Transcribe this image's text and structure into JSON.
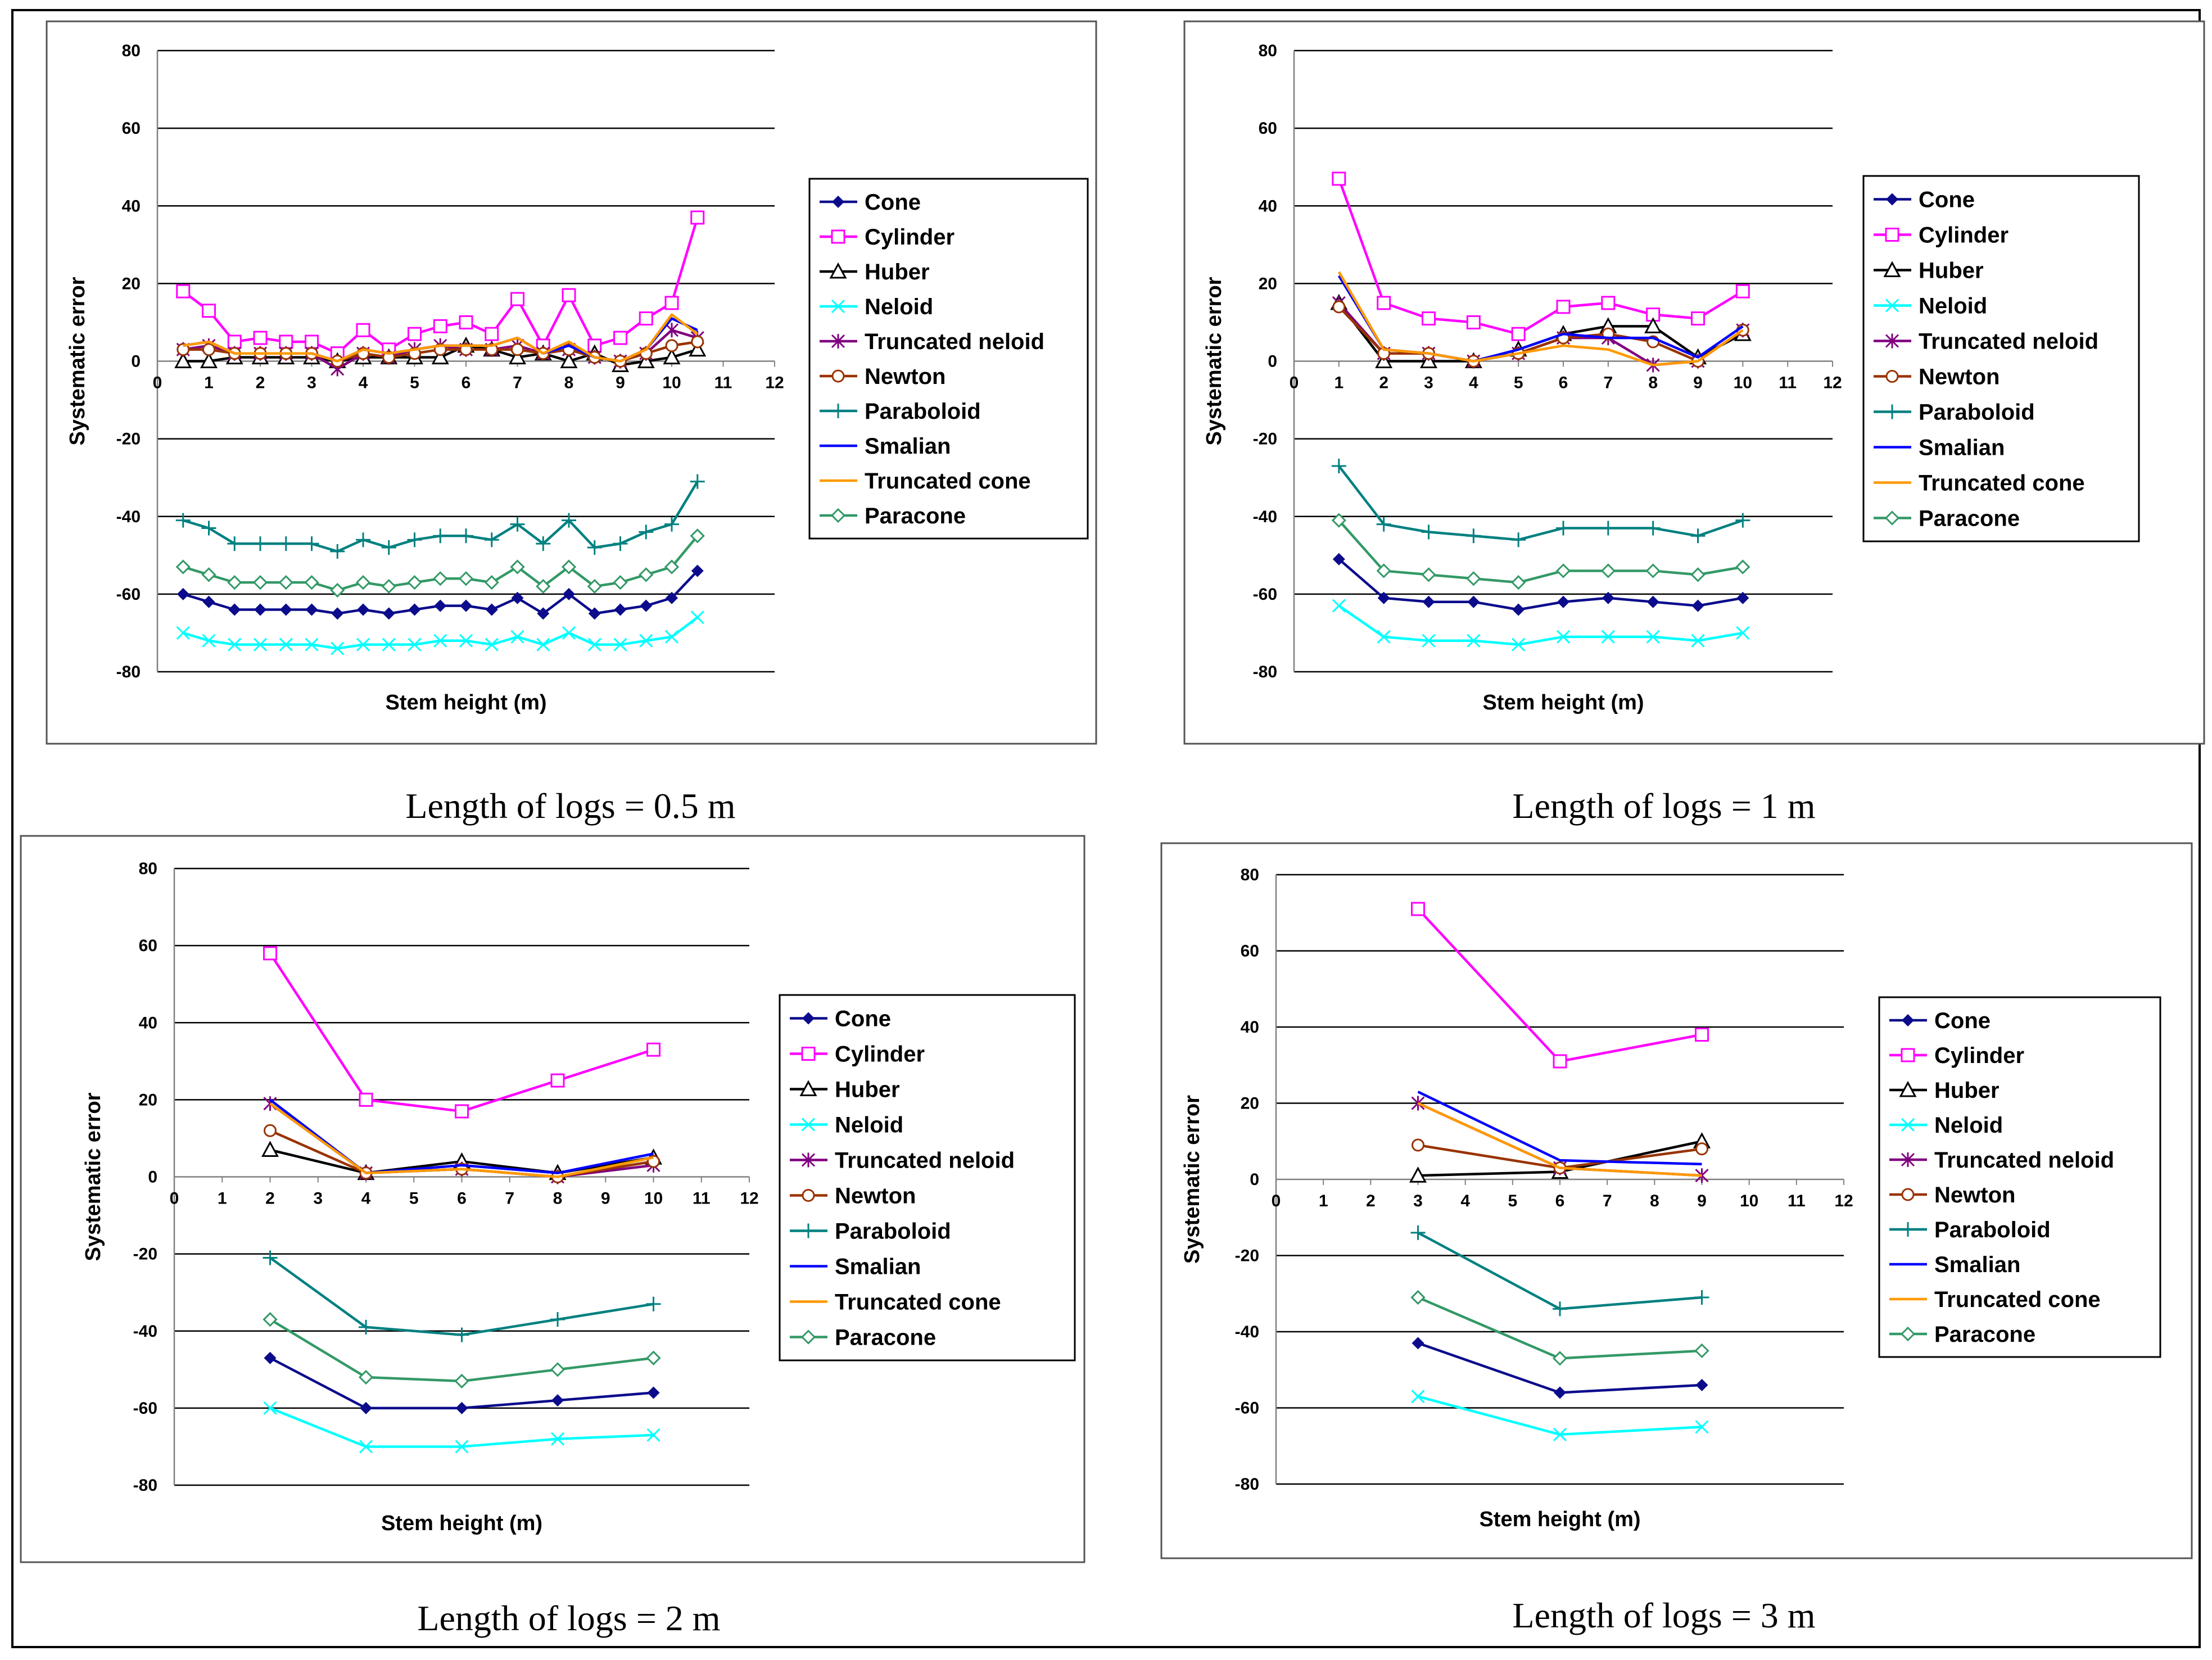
{
  "figure": {
    "captions": [
      "Length of logs = 0.5 m",
      "Length of logs = 1 m",
      "Length of logs = 2 m",
      "Length of logs = 3 m"
    ]
  },
  "series_styles": {
    "Cone": {
      "color": "#0B0B8C",
      "marker": "diamond"
    },
    "Cylinder": {
      "color": "#FF00FF",
      "marker": "square"
    },
    "Huber": {
      "color": "#000000",
      "marker": "triangle"
    },
    "Neloid": {
      "color": "#00FFFF",
      "marker": "x"
    },
    "Truncated neloid": {
      "color": "#800080",
      "marker": "star"
    },
    "Newton": {
      "color": "#993300",
      "marker": "circle"
    },
    "Paraboloid": {
      "color": "#008080",
      "marker": "plus"
    },
    "Smalian": {
      "color": "#0000FF",
      "marker": "none"
    },
    "Truncated cone": {
      "color": "#FF9900",
      "marker": "none"
    },
    "Paracone": {
      "color": "#339966",
      "marker": "diamond-open"
    }
  },
  "chart_data": [
    {
      "type": "line",
      "caption": "Length of logs = 0.5 m",
      "xlabel": "Stem height (m)",
      "ylabel": "Systematic error",
      "xlim": [
        0,
        12
      ],
      "ylim": [
        -80,
        80
      ],
      "xticks": [
        "0",
        "1",
        "2",
        "3",
        "4",
        "5",
        "6",
        "7",
        "8",
        "9",
        "10",
        "11",
        "12"
      ],
      "yticks": [
        "80",
        "60",
        "40",
        "20",
        "0",
        "-20",
        "-40",
        "-60",
        "-80"
      ],
      "x": [
        0.5,
        1,
        1.5,
        2,
        2.5,
        3,
        3.5,
        4,
        4.5,
        5,
        5.5,
        6,
        6.5,
        7,
        7.5,
        8,
        8.5,
        9,
        9.5,
        10,
        10.5
      ],
      "series": [
        {
          "name": "Cone",
          "values": [
            -60,
            -62,
            -64,
            -64,
            -64,
            -64,
            -65,
            -64,
            -65,
            -64,
            -63,
            -63,
            -64,
            -61,
            -65,
            -60,
            -65,
            -64,
            -63,
            -61,
            -54
          ]
        },
        {
          "name": "Cylinder",
          "values": [
            18,
            13,
            5,
            6,
            5,
            5,
            2,
            8,
            3,
            7,
            9,
            10,
            7,
            16,
            4,
            17,
            4,
            6,
            11,
            15,
            37
          ]
        },
        {
          "name": "Huber",
          "values": [
            0,
            0,
            1,
            1,
            1,
            1,
            0,
            1,
            1,
            1,
            1,
            4,
            3,
            1,
            2,
            0,
            2,
            -1,
            0,
            1,
            3
          ]
        },
        {
          "name": "Neloid",
          "values": [
            -70,
            -72,
            -73,
            -73,
            -73,
            -73,
            -74,
            -73,
            -73,
            -73,
            -72,
            -72,
            -73,
            -71,
            -73,
            -70,
            -73,
            -73,
            -72,
            -71,
            -66
          ]
        },
        {
          "name": "Truncated neloid",
          "values": [
            3,
            4,
            2,
            2,
            2,
            2,
            -2,
            2,
            1,
            3,
            4,
            3,
            3,
            4,
            2,
            3,
            1,
            0,
            2,
            8,
            6
          ]
        },
        {
          "name": "Newton",
          "values": [
            3,
            3,
            2,
            2,
            2,
            2,
            0,
            2,
            1,
            2,
            3,
            3,
            3,
            3,
            2,
            3,
            1,
            0,
            2,
            4,
            5
          ]
        },
        {
          "name": "Paraboloid",
          "values": [
            -41,
            -43,
            -47,
            -47,
            -47,
            -47,
            -49,
            -46,
            -48,
            -46,
            -45,
            -45,
            -46,
            -42,
            -47,
            -41,
            -48,
            -47,
            -44,
            -42,
            -31
          ]
        },
        {
          "name": "Smalian",
          "values": [
            4,
            5,
            2,
            2,
            2,
            2,
            0,
            3,
            2,
            3,
            4,
            4,
            4,
            6,
            2,
            4,
            1,
            0,
            3,
            11,
            8
          ]
        },
        {
          "name": "Truncated cone",
          "values": [
            4,
            5,
            2,
            2,
            2,
            2,
            0,
            3,
            2,
            3,
            4,
            4,
            4,
            6,
            2,
            5,
            1,
            0,
            3,
            12,
            7
          ]
        },
        {
          "name": "Paracone",
          "values": [
            -53,
            -55,
            -57,
            -57,
            -57,
            -57,
            -59,
            -57,
            -58,
            -57,
            -56,
            -56,
            -57,
            -53,
            -58,
            -53,
            -58,
            -57,
            -55,
            -53,
            -45
          ]
        }
      ]
    },
    {
      "type": "line",
      "caption": "Length of logs = 1 m",
      "xlabel": "Stem height (m)",
      "ylabel": "Systematic error",
      "xlim": [
        0,
        12
      ],
      "ylim": [
        -80,
        80
      ],
      "xticks": [
        "0",
        "1",
        "2",
        "3",
        "4",
        "5",
        "6",
        "7",
        "8",
        "9",
        "10",
        "11",
        "12"
      ],
      "yticks": [
        "80",
        "60",
        "40",
        "20",
        "0",
        "-20",
        "-40",
        "-60",
        "-80"
      ],
      "x": [
        1,
        2,
        3,
        4,
        5,
        6,
        7,
        8,
        9,
        10
      ],
      "series": [
        {
          "name": "Cone",
          "values": [
            -51,
            -61,
            -62,
            -62,
            -64,
            -62,
            -61,
            -62,
            -63,
            -61
          ]
        },
        {
          "name": "Cylinder",
          "values": [
            47,
            15,
            11,
            10,
            7,
            14,
            15,
            12,
            11,
            18
          ]
        },
        {
          "name": "Huber",
          "values": [
            15,
            0,
            0,
            0,
            3,
            7,
            9,
            9,
            1,
            7
          ]
        },
        {
          "name": "Neloid",
          "values": [
            -63,
            -71,
            -72,
            -72,
            -73,
            -71,
            -71,
            -71,
            -72,
            -70
          ]
        },
        {
          "name": "Truncated neloid",
          "values": [
            15,
            2,
            2,
            0,
            2,
            6,
            6,
            -1,
            0,
            8
          ]
        },
        {
          "name": "Newton",
          "values": [
            14,
            2,
            2,
            0,
            2,
            6,
            7,
            5,
            0,
            8
          ]
        },
        {
          "name": "Paraboloid",
          "values": [
            -27,
            -42,
            -44,
            -45,
            -46,
            -43,
            -43,
            -43,
            -45,
            -41
          ]
        },
        {
          "name": "Smalian",
          "values": [
            22,
            3,
            2,
            0,
            3,
            7,
            6,
            6,
            1,
            9
          ]
        },
        {
          "name": "Truncated cone",
          "values": [
            23,
            3,
            2,
            0,
            2,
            4,
            3,
            -1,
            0,
            8
          ]
        },
        {
          "name": "Paracone",
          "values": [
            -41,
            -54,
            -55,
            -56,
            -57,
            -54,
            -54,
            -54,
            -55,
            -53
          ]
        }
      ]
    },
    {
      "type": "line",
      "caption": "Length of logs = 2 m",
      "xlabel": "Stem height (m)",
      "ylabel": "Systematic error",
      "xlim": [
        0,
        12
      ],
      "ylim": [
        -80,
        80
      ],
      "xticks": [
        "0",
        "1",
        "2",
        "3",
        "4",
        "5",
        "6",
        "7",
        "8",
        "9",
        "10",
        "11",
        "12"
      ],
      "yticks": [
        "80",
        "60",
        "40",
        "20",
        "0",
        "-20",
        "-40",
        "-60",
        "-80"
      ],
      "x": [
        2,
        4,
        6,
        8,
        10
      ],
      "series": [
        {
          "name": "Cone",
          "values": [
            -47,
            -60,
            -60,
            -58,
            -56
          ]
        },
        {
          "name": "Cylinder",
          "values": [
            58,
            20,
            17,
            25,
            33
          ]
        },
        {
          "name": "Huber",
          "values": [
            7,
            1,
            4,
            1,
            5
          ]
        },
        {
          "name": "Neloid",
          "values": [
            -60,
            -70,
            -70,
            -68,
            -67
          ]
        },
        {
          "name": "Truncated neloid",
          "values": [
            19,
            1,
            2,
            0,
            3
          ]
        },
        {
          "name": "Newton",
          "values": [
            12,
            1,
            2,
            0,
            4
          ]
        },
        {
          "name": "Paraboloid",
          "values": [
            -21,
            -39,
            -41,
            -37,
            -33
          ]
        },
        {
          "name": "Smalian",
          "values": [
            20,
            1,
            3,
            1,
            6
          ]
        },
        {
          "name": "Truncated cone",
          "values": [
            19,
            1,
            2,
            0,
            5
          ]
        },
        {
          "name": "Paracone",
          "values": [
            -37,
            -52,
            -53,
            -50,
            -47
          ]
        }
      ]
    },
    {
      "type": "line",
      "caption": "Length of logs = 3 m",
      "xlabel": "Stem height (m)",
      "ylabel": "Systematic error",
      "xlim": [
        0,
        12
      ],
      "ylim": [
        -80,
        80
      ],
      "xticks": [
        "0",
        "1",
        "2",
        "3",
        "4",
        "5",
        "6",
        "7",
        "8",
        "9",
        "10",
        "11",
        "12"
      ],
      "yticks": [
        "80",
        "60",
        "40",
        "20",
        "0",
        "-20",
        "-40",
        "-60",
        "-80"
      ],
      "x": [
        3,
        6,
        9
      ],
      "series": [
        {
          "name": "Cone",
          "values": [
            -43,
            -56,
            -54
          ]
        },
        {
          "name": "Cylinder",
          "values": [
            71,
            31,
            38
          ]
        },
        {
          "name": "Huber",
          "values": [
            1,
            2,
            10
          ]
        },
        {
          "name": "Neloid",
          "values": [
            -57,
            -67,
            -65
          ]
        },
        {
          "name": "Truncated neloid",
          "values": [
            20,
            3,
            1
          ]
        },
        {
          "name": "Newton",
          "values": [
            9,
            3,
            8
          ]
        },
        {
          "name": "Paraboloid",
          "values": [
            -14,
            -34,
            -31
          ]
        },
        {
          "name": "Smalian",
          "values": [
            23,
            5,
            4
          ]
        },
        {
          "name": "Truncated cone",
          "values": [
            20,
            3,
            1
          ]
        },
        {
          "name": "Paracone",
          "values": [
            -31,
            -47,
            -45
          ]
        }
      ]
    }
  ]
}
